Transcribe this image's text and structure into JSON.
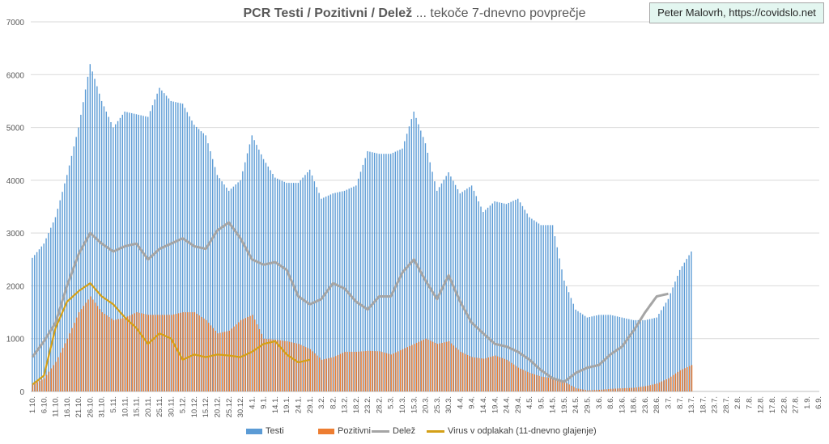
{
  "title": {
    "bold": "PCR Testi / Pozitivni / Delež",
    "normal": " ... tekoče 7-dnevno povprečje"
  },
  "credit": "Peter Malovrh, https://covidslo.net",
  "colors": {
    "testi": "#5b9bd5",
    "pozitivni": "#ed7d31",
    "delez": "#a5a5a5",
    "virus": "#d4a017",
    "grid": "#d9d9d9",
    "axis_text": "#595959"
  },
  "chart_data": {
    "type": "bar",
    "ylim": [
      0,
      7000
    ],
    "y_ticks": [
      "0",
      "1000",
      "2000",
      "3000",
      "4000",
      "5000",
      "6000",
      "7000"
    ],
    "x_tick_labels": [
      "1.10.",
      "6.10.",
      "11.10.",
      "16.10.",
      "21.10.",
      "26.10.",
      "31.10.",
      "5.11.",
      "10.11.",
      "15.11.",
      "20.11.",
      "25.11.",
      "30.11.",
      "5.12.",
      "10.12.",
      "15.12.",
      "20.12.",
      "25.12.",
      "30.12.",
      "4.1.",
      "9.1.",
      "14.1.",
      "19.1.",
      "24.1.",
      "29.1.",
      "3.2.",
      "8.2.",
      "13.2.",
      "18.2.",
      "23.2.",
      "28.2.",
      "5.3.",
      "10.3.",
      "15.3.",
      "20.3.",
      "25.3.",
      "30.3.",
      "4.4.",
      "9.4.",
      "14.4.",
      "19.4.",
      "24.4.",
      "29.4.",
      "4.5.",
      "9.5.",
      "14.5.",
      "19.5.",
      "24.5.",
      "29.5.",
      "3.6.",
      "8.6.",
      "13.6.",
      "18.6.",
      "23.6.",
      "28.6.",
      "3.7.",
      "8.7.",
      "13.7.",
      "18.7.",
      "23.7.",
      "28.7.",
      "2.8.",
      "7.8.",
      "12.8.",
      "17.8.",
      "22.8.",
      "27.8.",
      "1.9.",
      "6.9."
    ],
    "grid": true,
    "legend_position": "bottom",
    "series": [
      {
        "name": "Testi",
        "kind": "bar",
        "sampled_every_5_days": [
          2530,
          2800,
          3300,
          4100,
          5000,
          6200,
          5500,
          5000,
          5300,
          5250,
          5200,
          5750,
          5500,
          5450,
          5050,
          4850,
          4100,
          3800,
          4000,
          4850,
          4400,
          4050,
          3950,
          3950,
          4200,
          3650,
          3750,
          3800,
          3900,
          4550,
          4500,
          4500,
          4600,
          5300,
          4700,
          3800,
          4150,
          3750,
          3900,
          3400,
          3600,
          3550,
          3650,
          3300,
          3150,
          3150,
          2100,
          1550,
          1400,
          1450,
          1450,
          1400,
          1350,
          1350,
          1400,
          1750,
          2300,
          2650
        ]
      },
      {
        "name": "Pozitivni",
        "kind": "bar",
        "sampled_every_5_days": [
          130,
          250,
          560,
          1000,
          1500,
          1800,
          1500,
          1350,
          1400,
          1500,
          1450,
          1450,
          1450,
          1500,
          1500,
          1350,
          1100,
          1150,
          1350,
          1450,
          1000,
          980,
          950,
          900,
          800,
          600,
          650,
          750,
          750,
          770,
          760,
          700,
          800,
          900,
          1000,
          900,
          950,
          750,
          650,
          620,
          680,
          600,
          450,
          350,
          280,
          250,
          180,
          60,
          20,
          30,
          50,
          60,
          70,
          100,
          150,
          250,
          400,
          500
        ]
      },
      {
        "name": "Delež",
        "kind": "line",
        "sampled_every_5_days": [
          650,
          950,
          1300,
          2000,
          2600,
          3000,
          2800,
          2650,
          2750,
          2800,
          2500,
          2700,
          2800,
          2900,
          2750,
          2700,
          3050,
          3200,
          2900,
          2500,
          2400,
          2450,
          2300,
          1800,
          1650,
          1750,
          2050,
          1950,
          1700,
          1550,
          1800,
          1800,
          2250,
          2500,
          2100,
          1750,
          2200,
          1700,
          1300,
          1100,
          900,
          850,
          750,
          600,
          400,
          250,
          180,
          350,
          450,
          500,
          700,
          850,
          1150,
          1500,
          1800,
          1850
        ]
      },
      {
        "name": "Virus v odplakah (11-dnevno glajenje)",
        "kind": "line",
        "sampled_every_5_days": [
          130,
          300,
          1200,
          1700,
          1900,
          2050,
          1800,
          1650,
          1400,
          1200,
          900,
          1100,
          1000,
          600,
          700,
          650,
          700,
          680,
          650,
          750,
          900,
          950,
          700,
          550,
          600
        ]
      }
    ]
  }
}
